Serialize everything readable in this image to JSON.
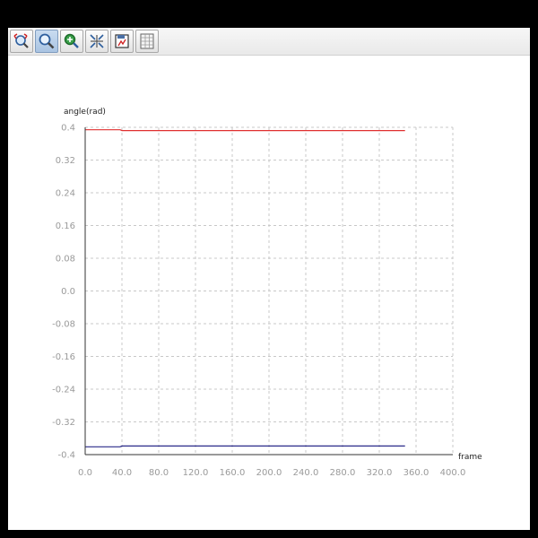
{
  "toolbar": {
    "buttons": [
      {
        "name": "zoom-reset-button",
        "icon": "zoom-fit-icon",
        "active": false
      },
      {
        "name": "zoom-button",
        "icon": "magnifier-icon",
        "active": true
      },
      {
        "name": "pan-button",
        "icon": "move-icon",
        "active": false
      },
      {
        "name": "fit-button",
        "icon": "scale-icon",
        "active": false
      },
      {
        "name": "save-button",
        "icon": "save-chart-icon",
        "active": false
      },
      {
        "name": "data-table-button",
        "icon": "table-icon",
        "active": false
      }
    ]
  },
  "chart_data": {
    "type": "line",
    "title": "",
    "xlabel": "frame",
    "ylabel": "angle(rad)",
    "xlim": [
      0,
      400
    ],
    "ylim": [
      -0.4,
      0.4
    ],
    "x_ticks": [
      0,
      40,
      80,
      120,
      160,
      200,
      240,
      280,
      320,
      360,
      400
    ],
    "x_tick_labels": [
      "0.0",
      "40.0",
      "80.0",
      "120.0",
      "160.0",
      "200.0",
      "240.0",
      "280.0",
      "320.0",
      "360.0",
      "400.0"
    ],
    "y_ticks": [
      0.4,
      0.32,
      0.24,
      0.16,
      0.08,
      0.0,
      -0.08,
      -0.16,
      -0.24,
      -0.32,
      -0.4
    ],
    "y_tick_labels": [
      "0.4",
      "0.32",
      "0.24",
      "0.16",
      "0.08",
      "0.0",
      "-0.08",
      "-0.16",
      "-0.24",
      "-0.32",
      "-0.4"
    ],
    "grid": true,
    "series": [
      {
        "color": "#e03030",
        "x": [
          0,
          38,
          40,
          348
        ],
        "y": [
          0.394,
          0.394,
          0.392,
          0.392
        ]
      },
      {
        "color": "#2a2a8a",
        "x": [
          0,
          38,
          40,
          348
        ],
        "y": [
          -0.381,
          -0.381,
          -0.379,
          -0.379
        ]
      }
    ]
  }
}
